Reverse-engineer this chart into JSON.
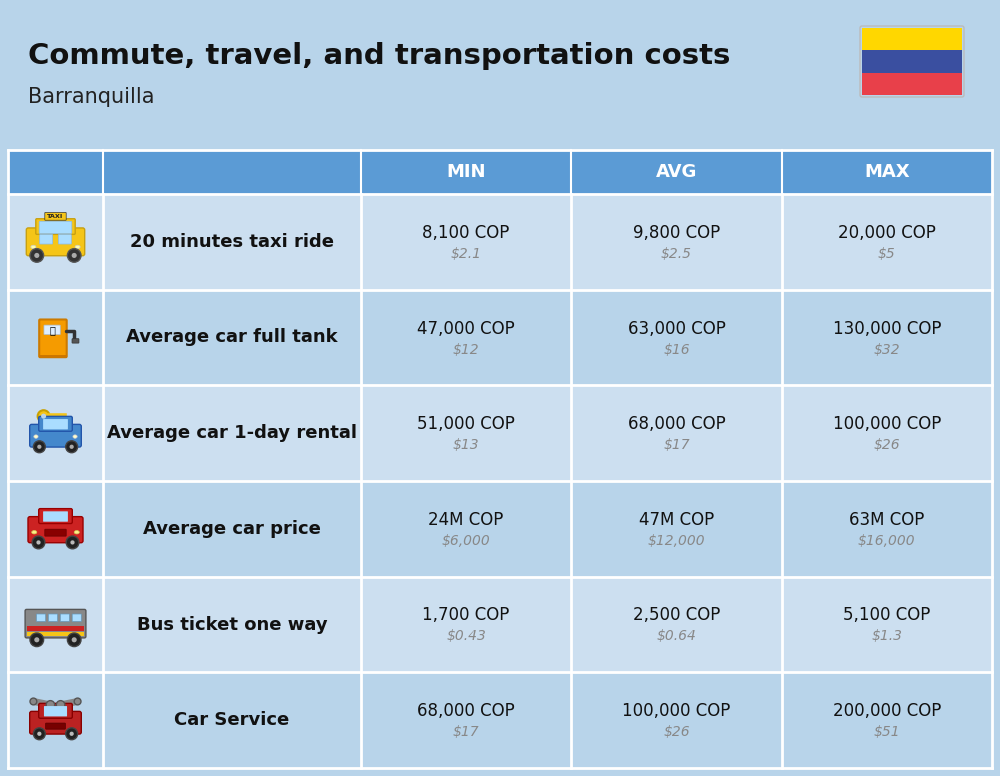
{
  "title": "Commute, travel, and transportation costs",
  "subtitle": "Barranquilla",
  "background_color": "#b8d4ea",
  "header_bg_color": "#5b9bd5",
  "header_text_color": "#ffffff",
  "row_bg_even": "#ccdff0",
  "row_bg_odd": "#b8d4ea",
  "divider_color": "#ffffff",
  "col_headers": [
    "MIN",
    "AVG",
    "MAX"
  ],
  "rows": [
    {
      "label": "20 minutes taxi ride",
      "min_cop": "8,100 COP",
      "min_usd": "$2.1",
      "avg_cop": "9,800 COP",
      "avg_usd": "$2.5",
      "max_cop": "20,000 COP",
      "max_usd": "$5"
    },
    {
      "label": "Average car full tank",
      "min_cop": "47,000 COP",
      "min_usd": "$12",
      "avg_cop": "63,000 COP",
      "avg_usd": "$16",
      "max_cop": "130,000 COP",
      "max_usd": "$32"
    },
    {
      "label": "Average car 1-day rental",
      "min_cop": "51,000 COP",
      "min_usd": "$13",
      "avg_cop": "68,000 COP",
      "avg_usd": "$17",
      "max_cop": "100,000 COP",
      "max_usd": "$26"
    },
    {
      "label": "Average car price",
      "min_cop": "24M COP",
      "min_usd": "$6,000",
      "avg_cop": "47M COP",
      "avg_usd": "$12,000",
      "max_cop": "63M COP",
      "max_usd": "$16,000"
    },
    {
      "label": "Bus ticket one way",
      "min_cop": "1,700 COP",
      "min_usd": "$0.43",
      "avg_cop": "2,500 COP",
      "avg_usd": "$0.64",
      "max_cop": "5,100 COP",
      "max_usd": "$1.3"
    },
    {
      "label": "Car Service",
      "min_cop": "68,000 COP",
      "min_usd": "$17",
      "avg_cop": "100,000 COP",
      "avg_usd": "$26",
      "max_cop": "200,000 COP",
      "max_usd": "$51"
    }
  ],
  "flag_colors": [
    "#FFD700",
    "#3a4fa0",
    "#e8404a"
  ],
  "title_fontsize": 21,
  "subtitle_fontsize": 15,
  "header_fontsize": 13,
  "label_fontsize": 13,
  "value_fontsize": 12,
  "usd_fontsize": 10
}
